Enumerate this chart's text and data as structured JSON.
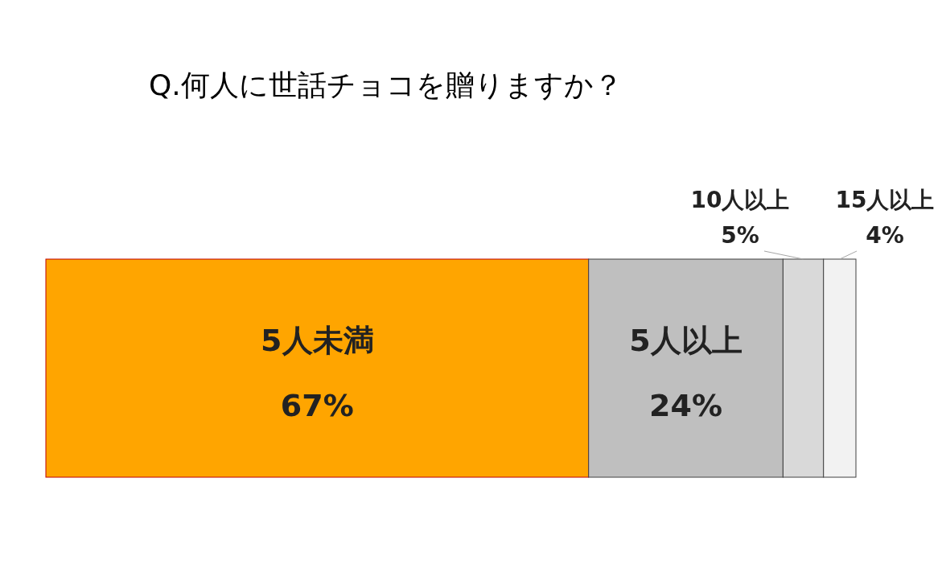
{
  "chart_data": {
    "type": "bar",
    "title": "Q.何人に世話チョコを贈りますか？",
    "categories": [
      null
    ],
    "orientation": "horizontal",
    "stacked": true,
    "series": [
      {
        "name": "5人未満",
        "color": "#ffa500",
        "values": [
          67
        ],
        "value_labels": [
          "67%"
        ]
      },
      {
        "name": "5人以上",
        "color": "#bfbfbf",
        "values": [
          24
        ],
        "value_labels": [
          "24%"
        ]
      },
      {
        "name": "10人以上",
        "color": "#d9d9d9",
        "values": [
          5
        ],
        "value_labels": [
          "5%"
        ]
      },
      {
        "name": "15人以上",
        "color": "#f2f2f2",
        "values": [
          4
        ],
        "value_labels": [
          "4%"
        ]
      }
    ]
  }
}
